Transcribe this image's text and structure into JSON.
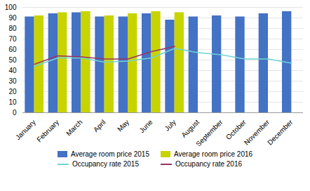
{
  "chart_data": {
    "type": "bar",
    "categories": [
      "January",
      "February",
      "March",
      "April",
      "May",
      "June",
      "July",
      "August",
      "September",
      "October",
      "November",
      "December"
    ],
    "series": [
      {
        "name": "Average room price 2015",
        "type": "bar",
        "color": "#4472c4",
        "values": [
          91,
          94,
          95,
          91,
          91,
          94,
          88,
          91,
          92,
          91,
          94,
          96
        ]
      },
      {
        "name": "Average room price 2016",
        "type": "bar",
        "color": "#c8d400",
        "values": [
          92,
          95,
          96,
          92,
          94,
          96,
          95,
          null,
          null,
          null,
          null,
          null
        ]
      },
      {
        "name": "Occupancy rate 2015",
        "type": "line",
        "color": "#70d4d4",
        "values": [
          44,
          52,
          52,
          48,
          49,
          52,
          61,
          57,
          55,
          51,
          51,
          47
        ]
      },
      {
        "name": "Occupancy rate 2016",
        "type": "line",
        "color": "#993366",
        "values": [
          46,
          54,
          53,
          51,
          51,
          58,
          63,
          null,
          null,
          null,
          null,
          null
        ]
      }
    ],
    "ylim": [
      0,
      100
    ],
    "yticks": [
      0,
      10,
      20,
      30,
      40,
      50,
      60,
      70,
      80,
      90,
      100
    ],
    "grid": true,
    "legend": "bottom"
  }
}
